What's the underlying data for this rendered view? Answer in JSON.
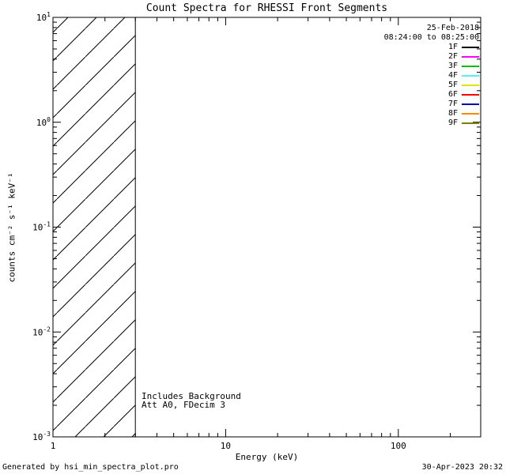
{
  "title": "Count Spectra for RHESSI Front Segments",
  "legend": {
    "date": "25-Feb-2018",
    "time_range": "08:24:00 to 08:25:00",
    "entries": [
      {
        "label": "1F",
        "color": "#000000"
      },
      {
        "label": "2F",
        "color": "#ff00ff"
      },
      {
        "label": "3F",
        "color": "#00bb00"
      },
      {
        "label": "4F",
        "color": "#55eeff"
      },
      {
        "label": "5F",
        "color": "#e3e300"
      },
      {
        "label": "6F",
        "color": "#ff0000"
      },
      {
        "label": "7F",
        "color": "#0000bb"
      },
      {
        "label": "8F",
        "color": "#ff8800"
      },
      {
        "label": "9F",
        "color": "#7d7d00"
      }
    ]
  },
  "annotations": {
    "background_note": "Includes Background",
    "attenuator_note": "Att A0, FDecim 3"
  },
  "footer": {
    "left": "Generated by hsi_min_spectra_plot.pro",
    "right": "30-Apr-2023 20:32"
  },
  "chart_data": {
    "type": "line",
    "title": "Count Spectra for RHESSI Front Segments",
    "xlabel": "Energy (keV)",
    "ylabel": "counts cm⁻² s⁻¹ keV⁻¹",
    "x_scale": "log",
    "y_scale": "log",
    "xlim": [
      1,
      300
    ],
    "ylim": [
      0.001,
      10
    ],
    "x_ticks": [
      1,
      10,
      100
    ],
    "x_tick_labels": [
      "1",
      "10",
      "100"
    ],
    "y_ticks": [
      0.001,
      0.01,
      0.1,
      1,
      10
    ],
    "y_tick_exponents": [
      "-3",
      "-2",
      "-1",
      "0",
      "1"
    ],
    "series": [],
    "series_note": "No spectra curves are drawn in the plot area; legend lists front segments 1F-9F.",
    "hatched_region": {
      "x_start": 1,
      "x_end": 3
    },
    "grid": false,
    "legend_position": "top-right"
  }
}
